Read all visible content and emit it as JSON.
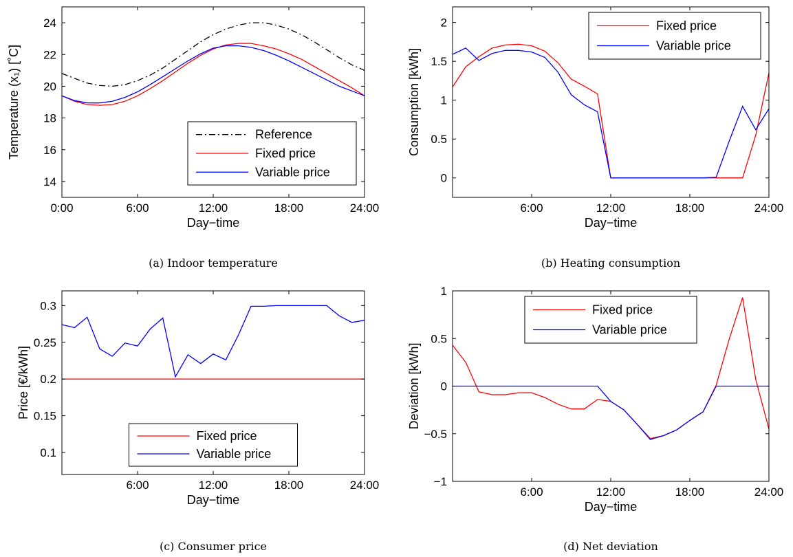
{
  "chart_data": [
    {
      "id": "a",
      "type": "line",
      "caption": "(a) Indoor temperature",
      "xlabel": "Day−time",
      "ylabel": "Temperature (x₁) [˚C]",
      "xlim": [
        0,
        24
      ],
      "ylim": [
        13,
        25
      ],
      "xticks": [
        0,
        6,
        12,
        18,
        24
      ],
      "xticklabels": [
        "0:00",
        "6:00",
        "12:00",
        "18:00",
        "24:00"
      ],
      "yticks": [
        14,
        16,
        18,
        20,
        22,
        24
      ],
      "yticklabels": [
        "14",
        "16",
        "18",
        "20",
        "22",
        "24"
      ],
      "legend_position": "bottom-right",
      "series": [
        {
          "name": "Reference",
          "color": "#000000",
          "dash": "dashdot",
          "x": [
            0,
            1,
            2,
            3,
            4,
            5,
            6,
            7,
            8,
            9,
            10,
            11,
            12,
            13,
            14,
            15,
            16,
            17,
            18,
            19,
            20,
            21,
            22,
            23,
            24
          ],
          "y": [
            20.8,
            20.5,
            20.2,
            20.05,
            20.0,
            20.1,
            20.35,
            20.7,
            21.15,
            21.7,
            22.25,
            22.8,
            23.25,
            23.6,
            23.85,
            24.0,
            24.0,
            23.85,
            23.6,
            23.25,
            22.8,
            22.3,
            21.8,
            21.35,
            21.0
          ]
        },
        {
          "name": "Fixed price",
          "color": "#ff0000",
          "dash": "solid",
          "x": [
            0,
            1,
            2,
            3,
            4,
            5,
            6,
            7,
            8,
            9,
            10,
            11,
            12,
            13,
            14,
            15,
            16,
            17,
            18,
            19,
            20,
            21,
            22,
            23,
            24
          ],
          "y": [
            19.4,
            19.05,
            18.85,
            18.8,
            18.85,
            19.05,
            19.4,
            19.85,
            20.35,
            20.9,
            21.45,
            21.95,
            22.35,
            22.6,
            22.7,
            22.7,
            22.55,
            22.35,
            22.05,
            21.7,
            21.25,
            20.8,
            20.35,
            19.9,
            19.4
          ]
        },
        {
          "name": "Variable price",
          "color": "#0000ff",
          "dash": "solid",
          "x": [
            0,
            1,
            2,
            3,
            4,
            5,
            6,
            7,
            8,
            9,
            10,
            11,
            12,
            13,
            14,
            15,
            16,
            17,
            18,
            19,
            20,
            21,
            22,
            23,
            24
          ],
          "y": [
            19.4,
            19.1,
            18.95,
            18.95,
            19.05,
            19.3,
            19.65,
            20.1,
            20.6,
            21.1,
            21.6,
            22.05,
            22.4,
            22.55,
            22.55,
            22.45,
            22.25,
            21.95,
            21.6,
            21.2,
            20.8,
            20.4,
            20.0,
            19.7,
            19.4
          ]
        }
      ]
    },
    {
      "id": "b",
      "type": "line",
      "caption": "(b) Heating consumption",
      "xlabel": "Day−time",
      "ylabel": "Consumption [kWh]",
      "xlim": [
        0,
        24
      ],
      "ylim": [
        -0.25,
        2.2
      ],
      "xticks": [
        6,
        12,
        18,
        24
      ],
      "xticklabels": [
        "6:00",
        "12:00",
        "18:00",
        "24:00"
      ],
      "yticks": [
        0,
        0.5,
        1,
        1.5,
        2
      ],
      "yticklabels": [
        "0",
        "0.5",
        "1",
        "1.5",
        "2"
      ],
      "legend_position": "top-right",
      "series": [
        {
          "name": "Fixed price",
          "color": "#ff0000",
          "dash": "solid",
          "x": [
            0,
            1,
            2,
            3,
            4,
            5,
            6,
            7,
            8,
            9,
            10,
            11,
            12,
            13,
            14,
            15,
            16,
            17,
            18,
            19,
            20,
            21,
            22,
            23,
            24
          ],
          "y": [
            1.17,
            1.43,
            1.56,
            1.67,
            1.71,
            1.72,
            1.7,
            1.63,
            1.48,
            1.27,
            1.18,
            1.08,
            0,
            0,
            0,
            0,
            0,
            0,
            0,
            0,
            0,
            0,
            0,
            0.55,
            1.35
          ]
        },
        {
          "name": "Variable price",
          "color": "#0000ff",
          "dash": "solid",
          "x": [
            0,
            1,
            2,
            3,
            4,
            5,
            6,
            7,
            8,
            9,
            10,
            11,
            12,
            13,
            14,
            15,
            16,
            17,
            18,
            19,
            20,
            21,
            22,
            23,
            24
          ],
          "y": [
            1.59,
            1.67,
            1.51,
            1.6,
            1.64,
            1.64,
            1.62,
            1.55,
            1.36,
            1.07,
            0.94,
            0.85,
            0,
            0,
            0,
            0,
            0,
            0,
            0,
            0,
            0.01,
            0.48,
            0.92,
            0.62,
            0.89
          ]
        }
      ]
    },
    {
      "id": "c",
      "type": "line",
      "caption": "(c) Consumer price",
      "xlabel": "Day−time",
      "ylabel": "Price [€/kWh]",
      "xlim": [
        0,
        24
      ],
      "ylim": [
        0.07,
        0.32
      ],
      "xticks": [
        6,
        12,
        18,
        24
      ],
      "xticklabels": [
        "6:00",
        "12:00",
        "18:00",
        "24:00"
      ],
      "yticks": [
        0.1,
        0.15,
        0.2,
        0.25,
        0.3
      ],
      "yticklabels": [
        "0.1",
        "0.15",
        "0.2",
        "0.25",
        "0.3"
      ],
      "legend_position": "bottom-center",
      "series": [
        {
          "name": "Fixed price",
          "color": "#ff0000",
          "dash": "solid",
          "x": [
            0,
            24
          ],
          "y": [
            0.2,
            0.2
          ]
        },
        {
          "name": "Variable price",
          "color": "#0000ff",
          "dash": "solid",
          "x": [
            0,
            1,
            2,
            3,
            4,
            5,
            6,
            7,
            8,
            9,
            10,
            11,
            12,
            13,
            14,
            15,
            16,
            17,
            18,
            19,
            20,
            21,
            22,
            23,
            24
          ],
          "y": [
            0.274,
            0.27,
            0.284,
            0.241,
            0.231,
            0.249,
            0.245,
            0.268,
            0.283,
            0.203,
            0.233,
            0.221,
            0.234,
            0.226,
            0.26,
            0.299,
            0.299,
            0.3,
            0.3,
            0.3,
            0.3,
            0.3,
            0.286,
            0.277,
            0.28
          ]
        }
      ]
    },
    {
      "id": "d",
      "type": "line",
      "caption": "(d) Net deviation",
      "xlabel": "Day−time",
      "ylabel": "Deviation [kWh]",
      "xlim": [
        0,
        24
      ],
      "ylim": [
        -1,
        1
      ],
      "xticks": [
        6,
        12,
        18,
        24
      ],
      "xticklabels": [
        "6:00",
        "12:00",
        "18:00",
        "24:00"
      ],
      "yticks": [
        -1,
        -0.5,
        0,
        0.5,
        1
      ],
      "yticklabels": [
        "−1",
        "−0.5",
        "0",
        "0.5",
        "1"
      ],
      "legend_position": "top-center",
      "series": [
        {
          "name": "Fixed price",
          "color": "#ff0000",
          "dash": "solid",
          "x": [
            0,
            1,
            2,
            3,
            4,
            5,
            6,
            7,
            8,
            9,
            10,
            11,
            12,
            13,
            14,
            15,
            16,
            17,
            18,
            19,
            20,
            21,
            22,
            23,
            24
          ],
          "y": [
            0.43,
            0.25,
            -0.06,
            -0.09,
            -0.09,
            -0.07,
            -0.07,
            -0.12,
            -0.19,
            -0.24,
            -0.24,
            -0.14,
            -0.16,
            -0.25,
            -0.4,
            -0.55,
            -0.52,
            -0.46,
            -0.36,
            -0.27,
            0.01,
            0.5,
            0.93,
            0.07,
            -0.45
          ]
        },
        {
          "name": "Variable price",
          "color": "#0000ff",
          "dash": "solid",
          "x": [
            0,
            1,
            2,
            3,
            4,
            5,
            6,
            7,
            8,
            9,
            10,
            11,
            12,
            13,
            14,
            15,
            16,
            17,
            18,
            19,
            20,
            21,
            22,
            23,
            24
          ],
          "y": [
            0,
            0,
            0,
            0,
            0,
            0,
            0,
            0,
            0,
            0,
            0,
            0,
            -0.16,
            -0.25,
            -0.4,
            -0.56,
            -0.52,
            -0.46,
            -0.36,
            -0.27,
            0,
            0,
            0,
            0,
            0
          ]
        }
      ]
    }
  ]
}
